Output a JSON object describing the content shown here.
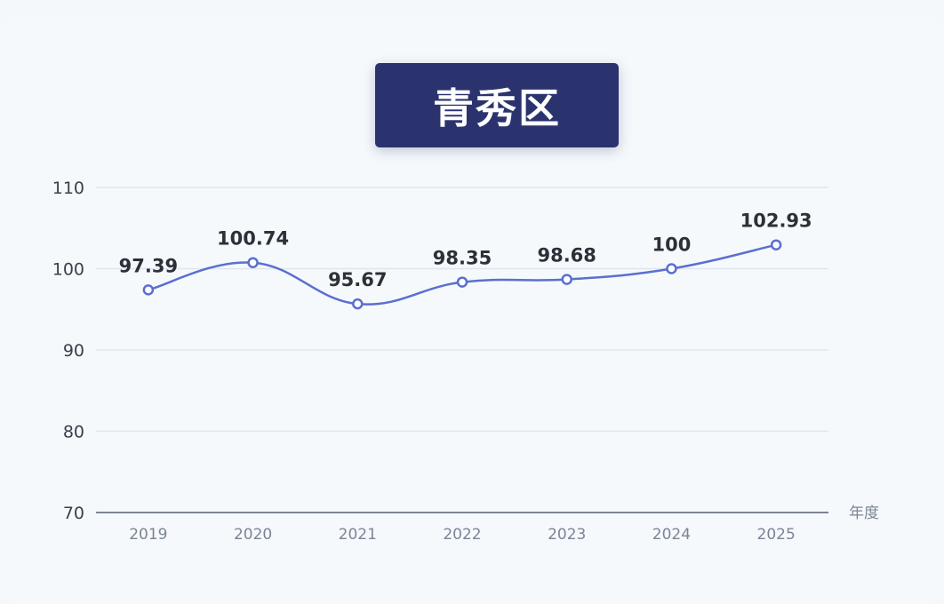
{
  "title": "青秀区",
  "colors": {
    "line": "#5b6fd0",
    "title_bg": "#2b336f",
    "axis": "#7c8496"
  },
  "chart_data": {
    "type": "line",
    "title": "青秀区",
    "categories": [
      "2019",
      "2020",
      "2021",
      "2022",
      "2023",
      "2024",
      "2025"
    ],
    "series": [
      {
        "values": [
          97.39,
          100.74,
          95.67,
          98.35,
          98.68,
          100,
          102.93
        ],
        "smooth": true
      }
    ],
    "data_labels": [
      "97.39",
      "100.74",
      "95.67",
      "98.35",
      "98.68",
      "100",
      "102.93"
    ],
    "xlabel": "年度",
    "ylabel": "",
    "ylim": [
      70,
      110
    ],
    "yticks": [
      "70",
      "80",
      "90",
      "100",
      "110"
    ],
    "grid": true,
    "legend": "none"
  }
}
